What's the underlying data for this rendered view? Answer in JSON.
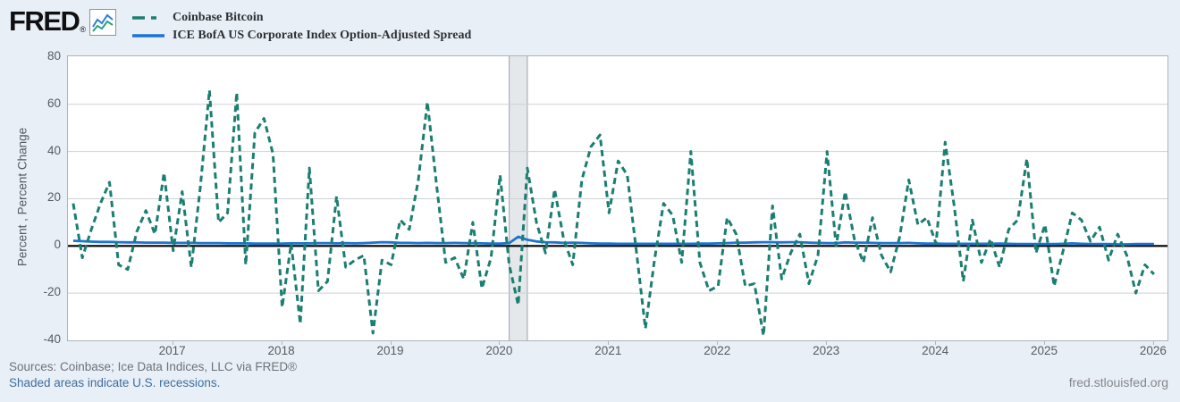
{
  "header": {
    "logo": "FRED",
    "logo_registered": "®",
    "legend": [
      {
        "label": "Coinbase Bitcoin",
        "color": "#1b7e71",
        "style": "dashed"
      },
      {
        "label": "ICE BofA US Corporate Index Option-Adjusted Spread",
        "color": "#1b75d3",
        "style": "solid"
      }
    ]
  },
  "footer": {
    "sources": "Sources: Coinbase; Ice Data Indices, LLC via FRED®",
    "recession_note": "Shaded areas indicate U.S. recessions.",
    "site": "fred.stlouisfed.org"
  },
  "colors": {
    "page_bg": "#e9eff7",
    "plot_bg": "#ffffff",
    "plot_border": "#aeb4b9",
    "gridline": "#cdd1d4",
    "zero_line": "#000000",
    "recession_fill": "#e4e8eb",
    "recession_edge": "#9fa4a8",
    "bitcoin_line": "#1b7e71",
    "oas_line": "#1b75d3",
    "logo_icon_blue": "#2f7ed8",
    "logo_icon_green": "#2aa181"
  },
  "chart_data": {
    "type": "line",
    "title": "",
    "xlabel": "",
    "ylabel": "Percent , Percent Change",
    "ylim": [
      -40,
      80
    ],
    "y_ticks": [
      80,
      60,
      40,
      20,
      0,
      -20,
      -40
    ],
    "x_ticks": [
      2017,
      2018,
      2019,
      2020,
      2021,
      2022,
      2023,
      2024,
      2025,
      2026
    ],
    "start_month": "2016-02",
    "end_month": "2026-01",
    "grid": "horizontal",
    "legend_position": "top-left",
    "zero_line": true,
    "recession": {
      "start": "2020-02",
      "end": "2020-04"
    },
    "series": [
      {
        "name": "Coinbase Bitcoin",
        "units": "Percent Change (monthly)",
        "color": "#1b7e71",
        "dash": true,
        "values": [
          18,
          -5,
          7,
          18,
          27,
          -8,
          -10,
          6,
          15,
          5,
          31,
          -2,
          23,
          -9,
          25,
          66,
          10,
          14,
          65,
          -8,
          48,
          54,
          39,
          -26,
          1,
          -33,
          33,
          -19,
          -15,
          21,
          -9,
          -6,
          -4,
          -37,
          -6,
          -8,
          11,
          7,
          28,
          61,
          26,
          -7,
          -5,
          -14,
          10,
          -18,
          -5,
          30,
          -8,
          -25,
          33,
          10,
          -3,
          24,
          3,
          -8,
          28,
          42,
          47,
          14,
          36,
          30,
          -2,
          -35,
          -6,
          18,
          13,
          -7,
          40,
          -7,
          -19,
          -17,
          12,
          5,
          -17,
          -16,
          -38,
          17,
          -14,
          -3,
          5,
          -16,
          -4,
          40,
          0,
          23,
          3,
          -7,
          12,
          -4,
          -11,
          4,
          28,
          9,
          12,
          1,
          44,
          17,
          -15,
          11,
          -7,
          3,
          -9,
          7,
          11,
          37,
          -3,
          9,
          -17,
          -2,
          14,
          11,
          2,
          8,
          -6,
          5,
          -4,
          -20,
          -8,
          -12
        ]
      },
      {
        "name": "ICE BofA US Corporate Index Option-Adjusted Spread",
        "units": "Percent",
        "color": "#1b75d3",
        "dash": false,
        "values": [
          2.2,
          2.0,
          1.8,
          1.7,
          1.7,
          1.6,
          1.5,
          1.5,
          1.4,
          1.4,
          1.4,
          1.3,
          1.3,
          1.3,
          1.2,
          1.2,
          1.2,
          1.1,
          1.1,
          1.1,
          1.0,
          1.0,
          1.0,
          1.0,
          1.1,
          1.1,
          1.1,
          1.2,
          1.2,
          1.1,
          1.2,
          1.1,
          1.2,
          1.4,
          1.6,
          1.5,
          1.3,
          1.3,
          1.2,
          1.3,
          1.2,
          1.2,
          1.3,
          1.2,
          1.2,
          1.1,
          1.0,
          1.0,
          1.2,
          3.9,
          2.6,
          1.9,
          1.6,
          1.5,
          1.3,
          1.4,
          1.3,
          1.1,
          1.0,
          1.0,
          0.9,
          0.9,
          0.9,
          0.9,
          0.9,
          0.9,
          0.9,
          0.9,
          0.9,
          1.0,
          1.0,
          1.1,
          1.2,
          1.4,
          1.4,
          1.5,
          1.6,
          1.6,
          1.5,
          1.6,
          1.6,
          1.4,
          1.3,
          1.2,
          1.2,
          1.5,
          1.4,
          1.4,
          1.3,
          1.2,
          1.2,
          1.2,
          1.3,
          1.1,
          1.0,
          1.0,
          0.9,
          0.9,
          0.9,
          0.9,
          0.9,
          0.9,
          1.0,
          0.9,
          0.8,
          0.8,
          0.8,
          0.8,
          0.8,
          0.9,
          1.1,
          0.9,
          0.8,
          0.8,
          0.8,
          0.7,
          0.7,
          0.8,
          0.8,
          0.8
        ]
      }
    ]
  }
}
